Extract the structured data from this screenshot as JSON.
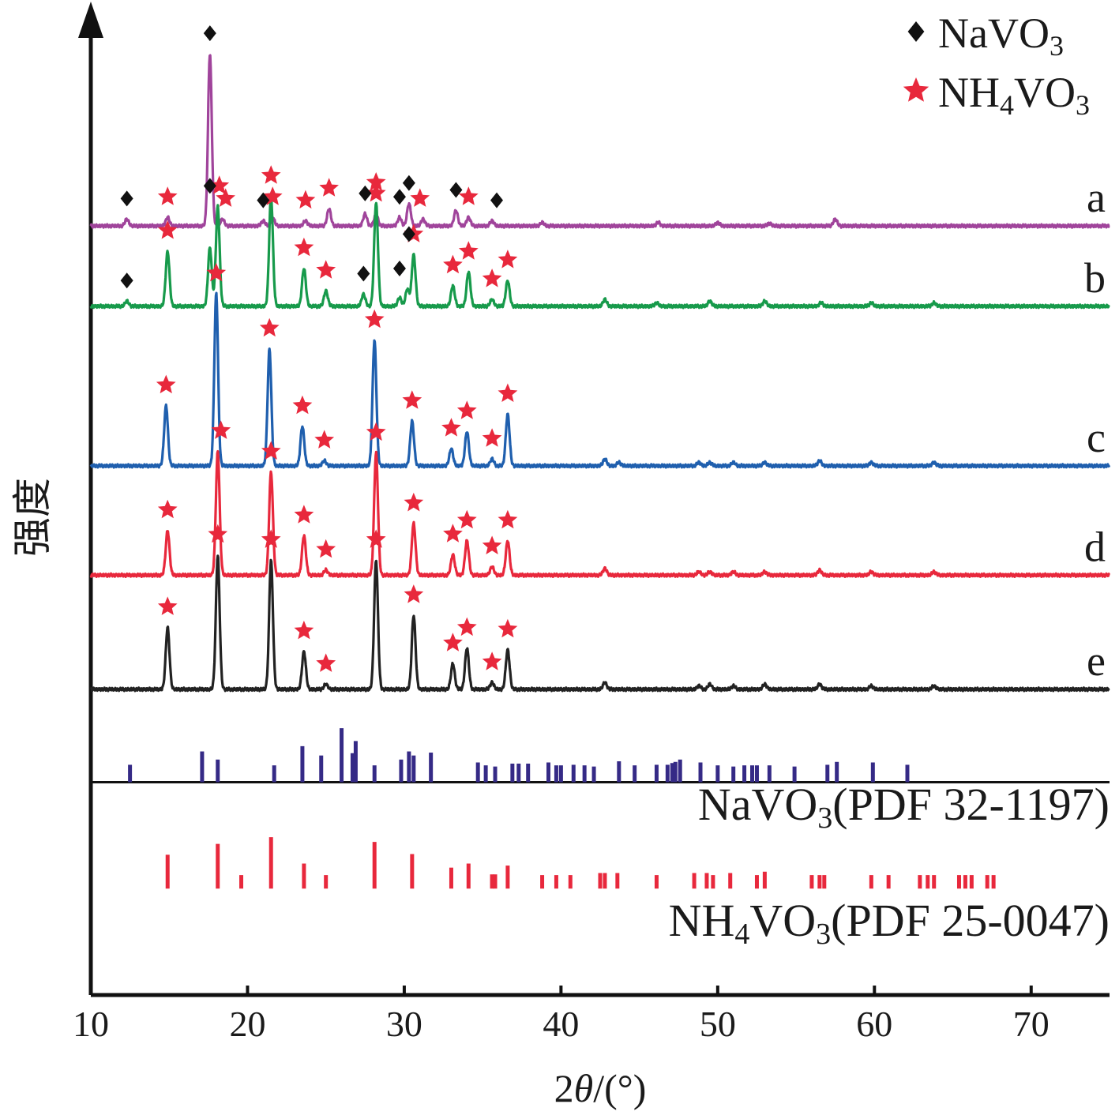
{
  "chart_data": {
    "type": "line",
    "xlabel_parts": [
      "2",
      "θ",
      "/(°)"
    ],
    "ylabel": "强度",
    "xlim": [
      10,
      75
    ],
    "xticks": [
      10,
      20,
      30,
      40,
      50,
      60,
      70
    ],
    "legend": {
      "placement": "top-right",
      "entries": [
        {
          "label_main": "NaVO",
          "label_sub": "3",
          "label_tail": "",
          "marker": "diamond",
          "color": "#111111"
        },
        {
          "label_main": "NH",
          "label_sub": "4",
          "label_tail": "VO",
          "label_sub2": "3",
          "marker": "star",
          "color": "#e8283c"
        }
      ]
    },
    "series": [
      {
        "name": "a",
        "color": "#a0449b",
        "baseline": 0.795,
        "scale": 0.178,
        "peaks": [
          [
            12.3,
            0.04
          ],
          [
            14.9,
            0.05
          ],
          [
            17.6,
            1.0
          ],
          [
            18.4,
            0.04
          ],
          [
            21.0,
            0.03
          ],
          [
            21.6,
            0.05
          ],
          [
            23.7,
            0.03
          ],
          [
            25.2,
            0.1
          ],
          [
            27.5,
            0.07
          ],
          [
            28.2,
            0.07
          ],
          [
            29.7,
            0.05
          ],
          [
            30.3,
            0.13
          ],
          [
            31.2,
            0.04
          ],
          [
            33.3,
            0.09
          ],
          [
            34.1,
            0.05
          ],
          [
            35.6,
            0.03
          ],
          [
            38.8,
            0.02
          ],
          [
            46.2,
            0.02
          ],
          [
            50.0,
            0.02
          ],
          [
            53.3,
            0.015
          ],
          [
            57.5,
            0.04
          ]
        ],
        "diamonds": [
          12.3,
          17.6,
          21.0,
          27.5,
          29.7,
          30.3,
          33.3,
          35.9
        ],
        "stars": [
          14.9,
          18.6,
          21.6,
          23.7,
          25.2,
          28.2,
          31.0,
          34.1
        ]
      },
      {
        "name": "b",
        "color": "#179a4b",
        "baseline": 0.712,
        "scale": 0.178,
        "peaks": [
          [
            12.3,
            0.03
          ],
          [
            14.9,
            0.32
          ],
          [
            17.6,
            0.34
          ],
          [
            18.1,
            0.58
          ],
          [
            21.5,
            0.64
          ],
          [
            23.6,
            0.22
          ],
          [
            25.0,
            0.09
          ],
          [
            27.4,
            0.07
          ],
          [
            28.2,
            0.6
          ],
          [
            29.7,
            0.05
          ],
          [
            30.2,
            0.1
          ],
          [
            30.6,
            0.3
          ],
          [
            33.1,
            0.12
          ],
          [
            34.1,
            0.2
          ],
          [
            35.6,
            0.04
          ],
          [
            36.6,
            0.15
          ],
          [
            42.8,
            0.04
          ],
          [
            46.1,
            0.02
          ],
          [
            49.5,
            0.03
          ],
          [
            53.0,
            0.03
          ],
          [
            56.6,
            0.02
          ],
          [
            59.8,
            0.02
          ],
          [
            63.8,
            0.02
          ]
        ],
        "diamonds": [
          12.3,
          17.6,
          27.4,
          29.7,
          30.3
        ],
        "stars": [
          14.9,
          18.2,
          21.5,
          23.6,
          25.0,
          28.2,
          30.6,
          33.1,
          34.1,
          35.6,
          36.6
        ]
      },
      {
        "name": "c",
        "color": "#1f5fae",
        "baseline": 0.547,
        "scale": 0.178,
        "peaks": [
          [
            14.8,
            0.35
          ],
          [
            18.0,
            1.0
          ],
          [
            21.4,
            0.68
          ],
          [
            23.5,
            0.23
          ],
          [
            24.9,
            0.03
          ],
          [
            28.1,
            0.73
          ],
          [
            30.5,
            0.26
          ],
          [
            33.0,
            0.1
          ],
          [
            34.0,
            0.2
          ],
          [
            35.6,
            0.04
          ],
          [
            36.6,
            0.3
          ],
          [
            42.8,
            0.04
          ],
          [
            43.7,
            0.02
          ],
          [
            48.8,
            0.02
          ],
          [
            49.5,
            0.02
          ],
          [
            51.0,
            0.02
          ],
          [
            53.0,
            0.02
          ],
          [
            56.5,
            0.03
          ],
          [
            59.8,
            0.02
          ],
          [
            63.8,
            0.02
          ]
        ],
        "diamonds": [],
        "stars": [
          14.8,
          18.0,
          21.4,
          23.5,
          24.9,
          28.1,
          30.5,
          33.0,
          34.0,
          35.6,
          36.6
        ]
      },
      {
        "name": "d",
        "color": "#e8283c",
        "baseline": 0.434,
        "scale": 0.178,
        "peaks": [
          [
            14.9,
            0.26
          ],
          [
            18.1,
            0.72
          ],
          [
            21.5,
            0.6
          ],
          [
            23.6,
            0.23
          ],
          [
            25.0,
            0.03
          ],
          [
            28.2,
            0.71
          ],
          [
            30.6,
            0.3
          ],
          [
            33.1,
            0.12
          ],
          [
            34.0,
            0.2
          ],
          [
            35.6,
            0.05
          ],
          [
            36.6,
            0.2
          ],
          [
            42.8,
            0.04
          ],
          [
            48.8,
            0.02
          ],
          [
            49.5,
            0.02
          ],
          [
            51.0,
            0.02
          ],
          [
            53.0,
            0.02
          ],
          [
            56.5,
            0.03
          ],
          [
            59.8,
            0.02
          ],
          [
            63.8,
            0.02
          ]
        ],
        "diamonds": [],
        "stars": [
          14.9,
          18.3,
          21.5,
          23.6,
          25.0,
          28.2,
          30.6,
          33.1,
          34.0,
          35.6,
          36.6
        ]
      },
      {
        "name": "e",
        "color": "#222222",
        "baseline": 0.316,
        "scale": 0.178,
        "peaks": [
          [
            14.9,
            0.36
          ],
          [
            18.1,
            0.78
          ],
          [
            21.5,
            0.75
          ],
          [
            23.6,
            0.22
          ],
          [
            25.0,
            0.03
          ],
          [
            28.2,
            0.75
          ],
          [
            30.6,
            0.43
          ],
          [
            33.1,
            0.15
          ],
          [
            34.0,
            0.24
          ],
          [
            35.6,
            0.04
          ],
          [
            36.6,
            0.23
          ],
          [
            42.8,
            0.04
          ],
          [
            48.8,
            0.02
          ],
          [
            49.5,
            0.03
          ],
          [
            51.0,
            0.02
          ],
          [
            53.0,
            0.03
          ],
          [
            56.5,
            0.03
          ],
          [
            59.8,
            0.02
          ],
          [
            63.8,
            0.02
          ]
        ],
        "diamonds": [],
        "stars": [
          14.9,
          18.1,
          21.5,
          23.6,
          25.0,
          28.2,
          30.6,
          33.1,
          34.0,
          35.6,
          36.6
        ]
      }
    ],
    "references": [
      {
        "label_parts": [
          "NaVO",
          "3",
          "(PDF 32-1197)"
        ],
        "color": "#352a86",
        "baseline": 0.22,
        "scale": 0.06,
        "lines": [
          [
            12.5,
            0.3
          ],
          [
            17.1,
            0.53
          ],
          [
            18.1,
            0.39
          ],
          [
            21.7,
            0.29
          ],
          [
            23.5,
            0.62
          ],
          [
            24.7,
            0.46
          ],
          [
            26.0,
            0.93
          ],
          [
            26.7,
            0.5
          ],
          [
            26.9,
            0.71
          ],
          [
            28.1,
            0.29
          ],
          [
            29.8,
            0.39
          ],
          [
            30.3,
            0.53
          ],
          [
            30.6,
            0.46
          ],
          [
            31.7,
            0.51
          ],
          [
            34.7,
            0.34
          ],
          [
            35.2,
            0.29
          ],
          [
            35.8,
            0.27
          ],
          [
            36.9,
            0.32
          ],
          [
            37.3,
            0.32
          ],
          [
            37.9,
            0.32
          ],
          [
            39.2,
            0.34
          ],
          [
            39.7,
            0.29
          ],
          [
            40.0,
            0.29
          ],
          [
            40.8,
            0.3
          ],
          [
            41.5,
            0.29
          ],
          [
            42.1,
            0.27
          ],
          [
            43.7,
            0.36
          ],
          [
            44.7,
            0.29
          ],
          [
            46.1,
            0.3
          ],
          [
            46.8,
            0.3
          ],
          [
            47.1,
            0.33
          ],
          [
            47.3,
            0.35
          ],
          [
            47.6,
            0.39
          ],
          [
            48.9,
            0.34
          ],
          [
            50.0,
            0.29
          ],
          [
            51.0,
            0.27
          ],
          [
            51.7,
            0.29
          ],
          [
            52.2,
            0.29
          ],
          [
            52.5,
            0.29
          ],
          [
            53.3,
            0.29
          ],
          [
            54.9,
            0.27
          ],
          [
            57.0,
            0.3
          ],
          [
            57.6,
            0.35
          ],
          [
            59.9,
            0.34
          ],
          [
            62.1,
            0.3
          ]
        ]
      },
      {
        "label_parts": [
          "NH",
          "4",
          "VO",
          "3",
          "(PDF 25-0047)"
        ],
        "color": "#e8283c",
        "baseline": 0.11,
        "scale": 0.07,
        "lines": [
          [
            14.9,
            0.5
          ],
          [
            18.1,
            0.66
          ],
          [
            19.6,
            0.2
          ],
          [
            21.5,
            0.76
          ],
          [
            23.6,
            0.37
          ],
          [
            25.0,
            0.2
          ],
          [
            28.1,
            0.69
          ],
          [
            30.5,
            0.51
          ],
          [
            33.0,
            0.31
          ],
          [
            34.1,
            0.37
          ],
          [
            35.6,
            0.21
          ],
          [
            35.8,
            0.21
          ],
          [
            36.6,
            0.34
          ],
          [
            38.8,
            0.2
          ],
          [
            39.7,
            0.2
          ],
          [
            40.6,
            0.2
          ],
          [
            42.5,
            0.23
          ],
          [
            42.8,
            0.23
          ],
          [
            43.6,
            0.23
          ],
          [
            46.1,
            0.2
          ],
          [
            48.5,
            0.23
          ],
          [
            49.3,
            0.23
          ],
          [
            49.7,
            0.2
          ],
          [
            50.8,
            0.23
          ],
          [
            52.5,
            0.2
          ],
          [
            53.0,
            0.25
          ],
          [
            56.0,
            0.2
          ],
          [
            56.5,
            0.2
          ],
          [
            56.8,
            0.2
          ],
          [
            59.8,
            0.2
          ],
          [
            60.9,
            0.2
          ],
          [
            62.9,
            0.2
          ],
          [
            63.4,
            0.2
          ],
          [
            63.8,
            0.2
          ],
          [
            65.4,
            0.2
          ],
          [
            65.8,
            0.2
          ],
          [
            66.2,
            0.2
          ],
          [
            67.2,
            0.2
          ],
          [
            67.6,
            0.2
          ]
        ]
      }
    ]
  }
}
